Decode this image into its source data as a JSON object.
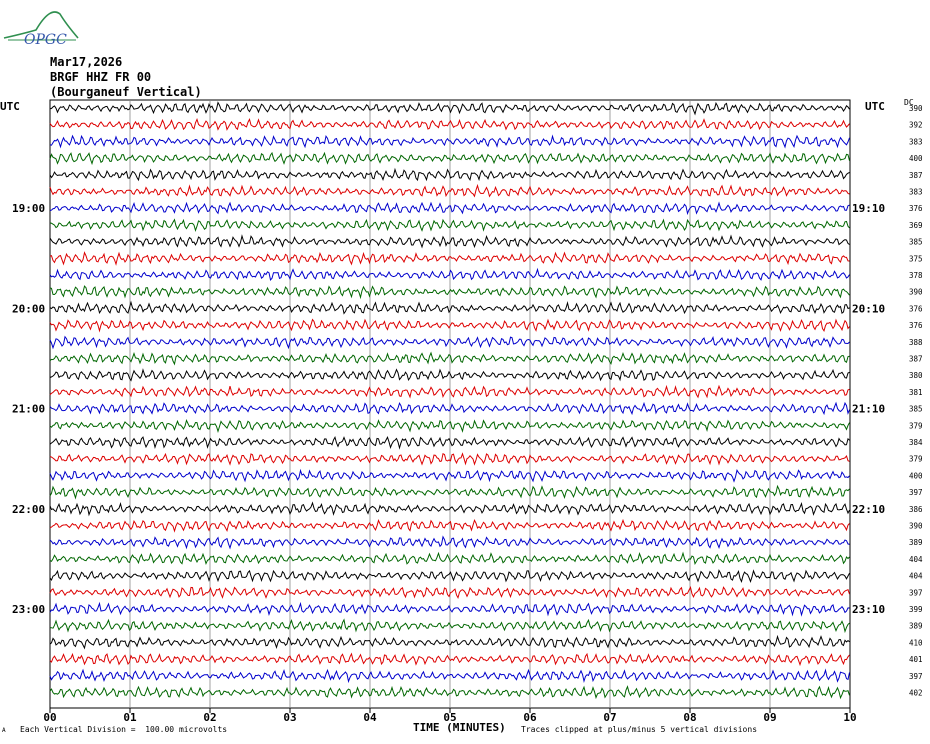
{
  "header": {
    "logo_text": "OPGC",
    "date": "Mar17,2026",
    "station": "BRGF HHZ FR 00",
    "location": "(Bourganeuf Vertical)"
  },
  "labels": {
    "utc_left": "UTC",
    "utc_right": "UTC",
    "dc_header": "DC",
    "scale_note": "Each Vertical Division =  100.00 microvolts",
    "clip_note": "Traces clipped at plus/minus 5 vertical divisions",
    "corner_mark": "A"
  },
  "chart_data": {
    "type": "line",
    "title": "BRGF HHZ FR 00 (Bourganeuf Vertical)",
    "xlabel": "TIME (MINUTES)",
    "x_ticks": [
      "00",
      "01",
      "02",
      "03",
      "04",
      "05",
      "06",
      "07",
      "08",
      "09",
      "10"
    ],
    "xlim": [
      0,
      10
    ],
    "left_time_labels": [
      "19:00",
      "20:00",
      "21:00",
      "22:00",
      "23:00"
    ],
    "right_time_labels": [
      "19:10",
      "20:10",
      "21:10",
      "22:10",
      "23:10"
    ],
    "trace_colors": [
      "#000000",
      "#dd0000",
      "#0000cc",
      "#006600"
    ],
    "dc_offsets": [
      390,
      392,
      383,
      400,
      387,
      383,
      376,
      369,
      385,
      375,
      378,
      390,
      376,
      376,
      388,
      387,
      380,
      381,
      385,
      379,
      384,
      379,
      400,
      397,
      386,
      390,
      389,
      404,
      404,
      397,
      399,
      389,
      410,
      401,
      397,
      402
    ],
    "grid": true
  }
}
